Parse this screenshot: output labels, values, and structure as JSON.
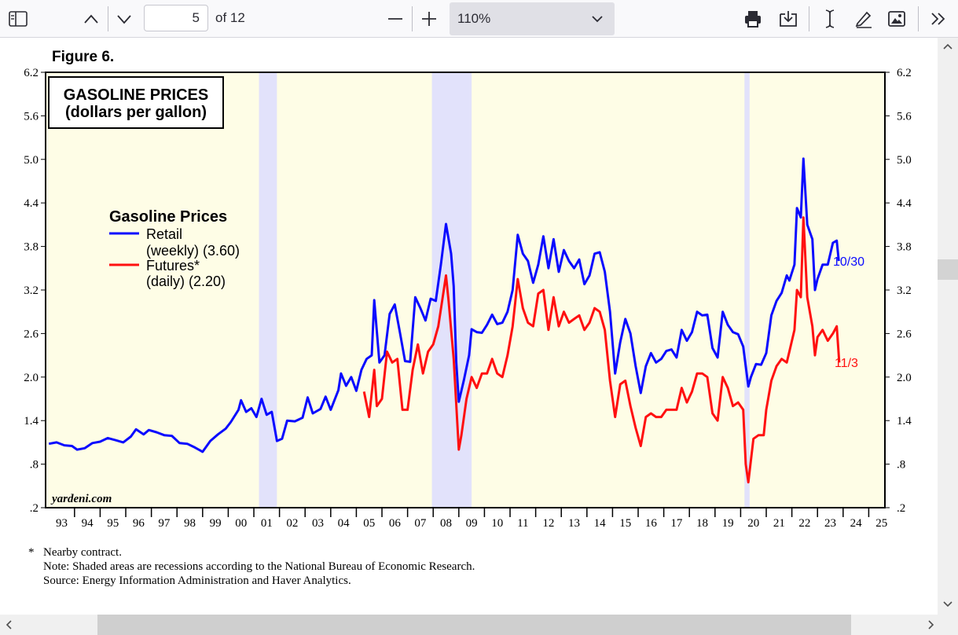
{
  "toolbar": {
    "sidebar_icon": "sidebar-toggle-icon",
    "prev_icon": "chevron-up-icon",
    "next_icon": "chevron-down-icon",
    "page_number": "5",
    "page_total": "of 12",
    "zoom_out_icon": "minus-icon",
    "zoom_in_icon": "plus-icon",
    "zoom_value": "110%",
    "print_icon": "printer-icon",
    "save_icon": "download-icon",
    "text_icon": "text-cursor-icon",
    "draw_icon": "pen-icon",
    "image_icon": "image-icon",
    "more_icon": "double-chevron-right-icon"
  },
  "figure": {
    "label": "Figure 6.",
    "box_title_1": "GASOLINE PRICES",
    "box_title_2": "(dollars per gallon)",
    "legend_title": "Gasoline Prices",
    "watermark": "yardeni.com",
    "footnote_star": "*",
    "footnote_1": "Nearby contract.",
    "footnote_2": "Note: Shaded areas are recessions according to the National Bureau of Economic Research.",
    "footnote_3": "Source: Energy Information Administration and Haver Analytics."
  },
  "chart_data": {
    "type": "line",
    "title": "GASOLINE PRICES (dollars per gallon)",
    "ylim": [
      0.2,
      6.2
    ],
    "yticks": [
      "6.2",
      "5.6",
      "5.0",
      "4.4",
      "3.8",
      "3.2",
      "2.6",
      "2.0",
      "1.4",
      ".8",
      ".2"
    ],
    "ytick_values": [
      6.2,
      5.6,
      5.0,
      4.4,
      3.8,
      3.2,
      2.6,
      2.0,
      1.4,
      0.8,
      0.2
    ],
    "xlim": [
      1993.0,
      2025.9
    ],
    "xticks": [
      "93",
      "94",
      "95",
      "96",
      "97",
      "98",
      "99",
      "00",
      "01",
      "02",
      "03",
      "04",
      "05",
      "06",
      "07",
      "08",
      "09",
      "10",
      "11",
      "12",
      "13",
      "14",
      "15",
      "16",
      "17",
      "18",
      "19",
      "20",
      "21",
      "22",
      "23",
      "24",
      "25"
    ],
    "recessions": [
      [
        2001.2,
        2001.9
      ],
      [
        2007.95,
        2009.5
      ],
      [
        2020.15,
        2020.35
      ]
    ],
    "colors": {
      "retail": "#0a0aff",
      "futures": "#ff1010",
      "plot_bg": "#fefde6",
      "recession": "#e2e2fb"
    },
    "legend_placement": "upper-left",
    "series": [
      {
        "name": "Retail",
        "label_1": "Retail",
        "label_2": "(weekly) (3.60)",
        "end_label": "10/30",
        "color": "#0a0aff",
        "points": [
          [
            1993.0,
            1.08
          ],
          [
            1993.3,
            1.1
          ],
          [
            1993.6,
            1.06
          ],
          [
            1993.9,
            1.05
          ],
          [
            1994.1,
            1.0
          ],
          [
            1994.4,
            1.02
          ],
          [
            1994.7,
            1.09
          ],
          [
            1995.0,
            1.11
          ],
          [
            1995.3,
            1.16
          ],
          [
            1995.6,
            1.13
          ],
          [
            1995.9,
            1.1
          ],
          [
            1996.2,
            1.18
          ],
          [
            1996.4,
            1.28
          ],
          [
            1996.7,
            1.21
          ],
          [
            1996.9,
            1.27
          ],
          [
            1997.2,
            1.24
          ],
          [
            1997.5,
            1.2
          ],
          [
            1997.8,
            1.19
          ],
          [
            1998.1,
            1.09
          ],
          [
            1998.4,
            1.08
          ],
          [
            1998.7,
            1.03
          ],
          [
            1999.0,
            0.97
          ],
          [
            1999.3,
            1.12
          ],
          [
            1999.6,
            1.21
          ],
          [
            1999.9,
            1.29
          ],
          [
            2000.1,
            1.38
          ],
          [
            2000.4,
            1.55
          ],
          [
            2000.5,
            1.68
          ],
          [
            2000.7,
            1.52
          ],
          [
            2000.9,
            1.57
          ],
          [
            2001.1,
            1.45
          ],
          [
            2001.3,
            1.7
          ],
          [
            2001.5,
            1.48
          ],
          [
            2001.7,
            1.52
          ],
          [
            2001.9,
            1.12
          ],
          [
            2002.1,
            1.15
          ],
          [
            2002.3,
            1.4
          ],
          [
            2002.6,
            1.39
          ],
          [
            2002.9,
            1.44
          ],
          [
            2003.1,
            1.72
          ],
          [
            2003.3,
            1.5
          ],
          [
            2003.6,
            1.56
          ],
          [
            2003.8,
            1.73
          ],
          [
            2004.0,
            1.55
          ],
          [
            2004.3,
            1.82
          ],
          [
            2004.4,
            2.05
          ],
          [
            2004.6,
            1.88
          ],
          [
            2004.8,
            2.0
          ],
          [
            2005.0,
            1.81
          ],
          [
            2005.2,
            2.1
          ],
          [
            2005.4,
            2.25
          ],
          [
            2005.6,
            2.3
          ],
          [
            2005.7,
            3.06
          ],
          [
            2005.9,
            2.2
          ],
          [
            2006.1,
            2.3
          ],
          [
            2006.3,
            2.87
          ],
          [
            2006.5,
            3.0
          ],
          [
            2006.7,
            2.62
          ],
          [
            2006.9,
            2.22
          ],
          [
            2007.1,
            2.21
          ],
          [
            2007.3,
            3.1
          ],
          [
            2007.5,
            2.95
          ],
          [
            2007.7,
            2.78
          ],
          [
            2007.9,
            3.08
          ],
          [
            2008.1,
            3.05
          ],
          [
            2008.3,
            3.55
          ],
          [
            2008.5,
            4.11
          ],
          [
            2008.7,
            3.7
          ],
          [
            2008.8,
            3.25
          ],
          [
            2008.9,
            2.2
          ],
          [
            2009.0,
            1.66
          ],
          [
            2009.2,
            1.96
          ],
          [
            2009.4,
            2.3
          ],
          [
            2009.5,
            2.66
          ],
          [
            2009.7,
            2.62
          ],
          [
            2009.9,
            2.61
          ],
          [
            2010.1,
            2.72
          ],
          [
            2010.3,
            2.86
          ],
          [
            2010.5,
            2.73
          ],
          [
            2010.7,
            2.75
          ],
          [
            2010.9,
            2.9
          ],
          [
            2011.1,
            3.2
          ],
          [
            2011.3,
            3.96
          ],
          [
            2011.5,
            3.7
          ],
          [
            2011.7,
            3.6
          ],
          [
            2011.9,
            3.3
          ],
          [
            2012.1,
            3.55
          ],
          [
            2012.3,
            3.94
          ],
          [
            2012.5,
            3.5
          ],
          [
            2012.7,
            3.9
          ],
          [
            2012.9,
            3.45
          ],
          [
            2013.1,
            3.75
          ],
          [
            2013.3,
            3.6
          ],
          [
            2013.5,
            3.5
          ],
          [
            2013.7,
            3.62
          ],
          [
            2013.9,
            3.28
          ],
          [
            2014.1,
            3.4
          ],
          [
            2014.3,
            3.7
          ],
          [
            2014.5,
            3.72
          ],
          [
            2014.7,
            3.45
          ],
          [
            2014.9,
            2.9
          ],
          [
            2015.1,
            2.05
          ],
          [
            2015.3,
            2.48
          ],
          [
            2015.5,
            2.8
          ],
          [
            2015.7,
            2.6
          ],
          [
            2015.9,
            2.15
          ],
          [
            2016.1,
            1.78
          ],
          [
            2016.3,
            2.15
          ],
          [
            2016.5,
            2.33
          ],
          [
            2016.7,
            2.2
          ],
          [
            2016.9,
            2.25
          ],
          [
            2017.1,
            2.36
          ],
          [
            2017.3,
            2.38
          ],
          [
            2017.5,
            2.27
          ],
          [
            2017.7,
            2.65
          ],
          [
            2017.9,
            2.5
          ],
          [
            2018.1,
            2.62
          ],
          [
            2018.3,
            2.9
          ],
          [
            2018.5,
            2.85
          ],
          [
            2018.7,
            2.86
          ],
          [
            2018.9,
            2.4
          ],
          [
            2019.1,
            2.27
          ],
          [
            2019.3,
            2.9
          ],
          [
            2019.5,
            2.72
          ],
          [
            2019.7,
            2.62
          ],
          [
            2019.9,
            2.59
          ],
          [
            2020.1,
            2.42
          ],
          [
            2020.3,
            1.87
          ],
          [
            2020.4,
            2.0
          ],
          [
            2020.6,
            2.18
          ],
          [
            2020.8,
            2.17
          ],
          [
            2021.0,
            2.33
          ],
          [
            2021.2,
            2.85
          ],
          [
            2021.4,
            3.05
          ],
          [
            2021.6,
            3.16
          ],
          [
            2021.8,
            3.4
          ],
          [
            2021.9,
            3.33
          ],
          [
            2022.1,
            3.55
          ],
          [
            2022.2,
            4.33
          ],
          [
            2022.35,
            4.2
          ],
          [
            2022.45,
            5.01
          ],
          [
            2022.6,
            4.1
          ],
          [
            2022.8,
            3.9
          ],
          [
            2022.9,
            3.2
          ],
          [
            2023.0,
            3.35
          ],
          [
            2023.2,
            3.55
          ],
          [
            2023.4,
            3.55
          ],
          [
            2023.6,
            3.85
          ],
          [
            2023.75,
            3.88
          ],
          [
            2023.83,
            3.6
          ]
        ]
      },
      {
        "name": "Futures*",
        "label_1": "Futures*",
        "label_2": "(daily) (2.20)",
        "end_label": "11/3",
        "color": "#ff1010",
        "points": [
          [
            2005.3,
            1.8
          ],
          [
            2005.5,
            1.45
          ],
          [
            2005.7,
            2.1
          ],
          [
            2005.8,
            1.6
          ],
          [
            2006.0,
            1.7
          ],
          [
            2006.2,
            2.35
          ],
          [
            2006.4,
            2.2
          ],
          [
            2006.6,
            2.25
          ],
          [
            2006.8,
            1.55
          ],
          [
            2007.0,
            1.55
          ],
          [
            2007.2,
            2.1
          ],
          [
            2007.4,
            2.45
          ],
          [
            2007.6,
            2.05
          ],
          [
            2007.8,
            2.35
          ],
          [
            2008.0,
            2.45
          ],
          [
            2008.2,
            2.7
          ],
          [
            2008.5,
            3.4
          ],
          [
            2008.6,
            3.05
          ],
          [
            2008.8,
            2.25
          ],
          [
            2009.0,
            1.0
          ],
          [
            2009.1,
            1.2
          ],
          [
            2009.3,
            1.7
          ],
          [
            2009.5,
            2.0
          ],
          [
            2009.7,
            1.85
          ],
          [
            2009.9,
            2.05
          ],
          [
            2010.1,
            2.05
          ],
          [
            2010.3,
            2.25
          ],
          [
            2010.5,
            2.05
          ],
          [
            2010.7,
            2.0
          ],
          [
            2010.9,
            2.3
          ],
          [
            2011.1,
            2.7
          ],
          [
            2011.3,
            3.35
          ],
          [
            2011.5,
            2.95
          ],
          [
            2011.7,
            2.75
          ],
          [
            2011.9,
            2.7
          ],
          [
            2012.1,
            3.15
          ],
          [
            2012.3,
            3.2
          ],
          [
            2012.5,
            2.65
          ],
          [
            2012.7,
            3.1
          ],
          [
            2012.9,
            2.7
          ],
          [
            2013.1,
            2.9
          ],
          [
            2013.3,
            2.75
          ],
          [
            2013.5,
            2.8
          ],
          [
            2013.7,
            2.85
          ],
          [
            2013.9,
            2.65
          ],
          [
            2014.1,
            2.75
          ],
          [
            2014.3,
            2.95
          ],
          [
            2014.5,
            2.9
          ],
          [
            2014.7,
            2.65
          ],
          [
            2014.9,
            1.95
          ],
          [
            2015.1,
            1.45
          ],
          [
            2015.3,
            1.9
          ],
          [
            2015.5,
            1.95
          ],
          [
            2015.7,
            1.6
          ],
          [
            2015.9,
            1.3
          ],
          [
            2016.1,
            1.05
          ],
          [
            2016.3,
            1.45
          ],
          [
            2016.5,
            1.5
          ],
          [
            2016.7,
            1.45
          ],
          [
            2016.9,
            1.45
          ],
          [
            2017.1,
            1.55
          ],
          [
            2017.3,
            1.55
          ],
          [
            2017.5,
            1.55
          ],
          [
            2017.7,
            1.85
          ],
          [
            2017.9,
            1.65
          ],
          [
            2018.1,
            1.8
          ],
          [
            2018.3,
            2.05
          ],
          [
            2018.5,
            2.05
          ],
          [
            2018.7,
            2.0
          ],
          [
            2018.9,
            1.5
          ],
          [
            2019.1,
            1.4
          ],
          [
            2019.3,
            2.0
          ],
          [
            2019.5,
            1.85
          ],
          [
            2019.7,
            1.6
          ],
          [
            2019.9,
            1.65
          ],
          [
            2020.1,
            1.55
          ],
          [
            2020.2,
            0.8
          ],
          [
            2020.3,
            0.55
          ],
          [
            2020.5,
            1.15
          ],
          [
            2020.7,
            1.2
          ],
          [
            2020.9,
            1.2
          ],
          [
            2021.0,
            1.55
          ],
          [
            2021.2,
            1.95
          ],
          [
            2021.4,
            2.15
          ],
          [
            2021.6,
            2.25
          ],
          [
            2021.8,
            2.2
          ],
          [
            2021.9,
            2.35
          ],
          [
            2022.1,
            2.65
          ],
          [
            2022.2,
            3.2
          ],
          [
            2022.35,
            3.1
          ],
          [
            2022.45,
            4.2
          ],
          [
            2022.6,
            3.1
          ],
          [
            2022.8,
            2.7
          ],
          [
            2022.9,
            2.3
          ],
          [
            2023.0,
            2.55
          ],
          [
            2023.2,
            2.65
          ],
          [
            2023.4,
            2.5
          ],
          [
            2023.6,
            2.6
          ],
          [
            2023.75,
            2.7
          ],
          [
            2023.85,
            2.2
          ]
        ]
      }
    ]
  }
}
